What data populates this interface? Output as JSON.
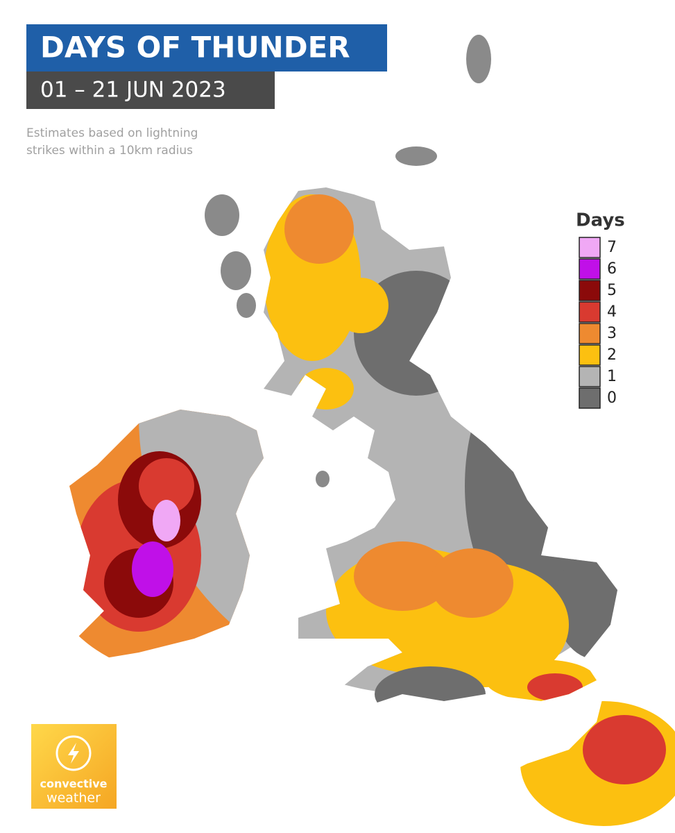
{
  "header": {
    "title": "DAYS OF THUNDER",
    "subtitle": "01 – 21 JUN 2023",
    "note_lines": [
      "Estimates based on lightning",
      "strikes within a 10km radius"
    ]
  },
  "legend": {
    "title": "Days",
    "items": [
      {
        "value": 7,
        "color": "#f0a8f5"
      },
      {
        "value": 6,
        "color": "#c010e8"
      },
      {
        "value": 5,
        "color": "#8b0a0a"
      },
      {
        "value": 4,
        "color": "#d93a30"
      },
      {
        "value": 3,
        "color": "#ee8a30"
      },
      {
        "value": 2,
        "color": "#fcc010"
      },
      {
        "value": 1,
        "color": "#b4b4b4"
      },
      {
        "value": 0,
        "color": "#6e6e6e"
      }
    ]
  },
  "logo": {
    "line1": "convective",
    "line2": "weather"
  }
}
